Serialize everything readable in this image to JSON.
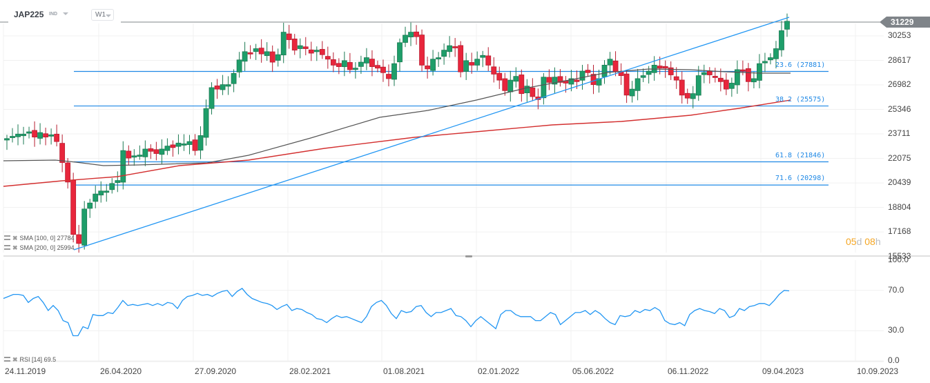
{
  "header": {
    "symbol": "JAP225",
    "market_tag": "IND",
    "timeframe": "W1"
  },
  "price_axis": {
    "labels": [
      "30253",
      "28617",
      "26982",
      "25346",
      "23711",
      "22075",
      "20439",
      "18804",
      "17168",
      "15533"
    ],
    "current_price": "31229"
  },
  "rsi_axis": {
    "labels": [
      "100.0",
      "70.0",
      "30.0",
      "0.0"
    ]
  },
  "date_axis": {
    "labels": [
      "24.11.2019",
      "26.04.2020",
      "27.09.2020",
      "28.02.2021",
      "01.08.2021",
      "02.01.2022",
      "05.06.2022",
      "06.11.2022",
      "09.04.2023",
      "10.09.2023"
    ]
  },
  "fib_levels": [
    {
      "label": "23.6 (27881)",
      "value": 27881
    },
    {
      "label": "38.2 (25575)",
      "value": 25575
    },
    {
      "label": "61.8 (21846)",
      "value": 21846
    },
    {
      "label": "71.6 (20298)",
      "value": 20298
    }
  ],
  "indicators": {
    "sma100": {
      "label": "SMA [100, 0] 27784",
      "color": "#555555"
    },
    "sma200": {
      "label": "SMA [200, 0] 25994",
      "color": "#d32f2f"
    },
    "rsi": {
      "label": "RSI [14] 69.5",
      "color": "#2196f3"
    }
  },
  "countdown": {
    "days": "05",
    "days_unit": "d",
    "hours": "08",
    "hours_unit": "h"
  },
  "colors": {
    "bull": "#1e9e6a",
    "bear": "#e8263c",
    "fib": "#1e88e5",
    "trendline": "#2196f3",
    "price_line": "#7f8489"
  },
  "chart_data": {
    "type": "candlestick",
    "title": "JAP225 W1",
    "instrument": "JAP225",
    "timeframe": "W1",
    "x_range": [
      "24.11.2019",
      "10.09.2023"
    ],
    "ylim": [
      15533,
      31229
    ],
    "current_price": 31229,
    "close_approx": [
      23400,
      23550,
      23700,
      23700,
      23850,
      23500,
      23800,
      23500,
      23650,
      23200,
      21800,
      20500,
      17000,
      16400,
      18700,
      19100,
      19700,
      19900,
      19900,
      20400,
      20600,
      22600,
      22100,
      22250,
      22300,
      22700,
      22550,
      22400,
      22700,
      22900,
      22800,
      23100,
      23050,
      23200,
      22600,
      23600,
      25400,
      26800,
      26700,
      27000,
      27000,
      27750,
      28650,
      29200,
      29100,
      29400,
      29050,
      29200,
      28500,
      29000,
      30500,
      30000,
      29300,
      29600,
      29400,
      29100,
      29300,
      29000,
      28700,
      28300,
      28200,
      28600,
      28000,
      28100,
      28500,
      28800,
      28200,
      28100,
      27800,
      27400,
      28400,
      29800,
      30300,
      30500,
      30200,
      28300,
      28050,
      28700,
      28800,
      29300,
      29600,
      29500,
      27850,
      28600,
      28300,
      28700,
      28950,
      28300,
      27700,
      27300,
      26600,
      27300,
      27550,
      26400,
      26900,
      26200,
      26000,
      27500,
      27150,
      27500,
      27150,
      27100,
      27400,
      27200,
      27900,
      27800,
      27000,
      27400,
      28300,
      28700,
      27850,
      27600,
      26300,
      26700,
      27400,
      27600,
      27900,
      28300,
      28100,
      28100,
      27650,
      27300,
      26300,
      26100,
      26400,
      27600,
      27800,
      27650,
      27500,
      27200,
      26700,
      27100,
      28000,
      27950,
      27200,
      27400,
      28400,
      28550,
      28800,
      29400,
      30600,
      31229
    ],
    "sma100_end": 27784,
    "sma200_end": 25994,
    "fibonacci": [
      {
        "level": 23.6,
        "price": 27881
      },
      {
        "level": 38.2,
        "price": 25575
      },
      {
        "level": 61.8,
        "price": 21846
      },
      {
        "level": 71.6,
        "price": 20298
      }
    ],
    "trendline": {
      "from": {
        "date": "2020-03",
        "price": 16400
      },
      "to": {
        "date": "2023-06",
        "price": 31229
      }
    },
    "rsi": {
      "period": 14,
      "last": 69.5,
      "ylim": [
        0,
        100
      ],
      "levels": [
        30,
        70
      ],
      "values_approx": [
        62,
        64,
        66,
        66,
        65,
        58,
        62,
        64,
        58,
        50,
        55,
        50,
        40,
        38,
        25,
        25,
        34,
        32,
        46,
        45,
        45,
        48,
        47,
        53,
        60,
        55,
        56,
        55,
        56,
        57,
        55,
        57,
        55,
        58,
        57,
        52,
        60,
        64,
        65,
        67,
        65,
        66,
        64,
        67,
        69,
        70,
        64,
        69,
        72,
        66,
        62,
        60,
        58,
        57,
        55,
        51,
        54,
        56,
        50,
        52,
        51,
        48,
        46,
        42,
        41,
        38,
        42,
        45,
        43,
        44,
        42,
        40,
        38,
        44,
        54,
        58,
        60,
        55,
        47,
        42,
        50,
        48,
        49,
        54,
        55,
        48,
        44,
        48,
        48,
        50,
        52,
        45,
        44,
        40,
        34,
        40,
        44,
        40,
        36,
        32,
        46,
        50,
        50,
        46,
        44,
        44,
        44,
        40,
        40,
        44,
        48,
        46,
        36,
        40,
        44,
        48,
        48,
        50,
        46,
        50,
        47,
        42,
        38,
        36,
        45,
        44,
        45,
        50,
        48,
        51,
        50,
        53,
        50,
        40,
        37,
        36,
        38,
        35,
        46,
        50,
        52,
        50,
        49,
        47,
        52,
        50,
        43,
        45,
        52,
        50,
        54,
        55,
        57,
        57,
        55,
        60,
        66,
        70,
        69.5
      ]
    }
  }
}
